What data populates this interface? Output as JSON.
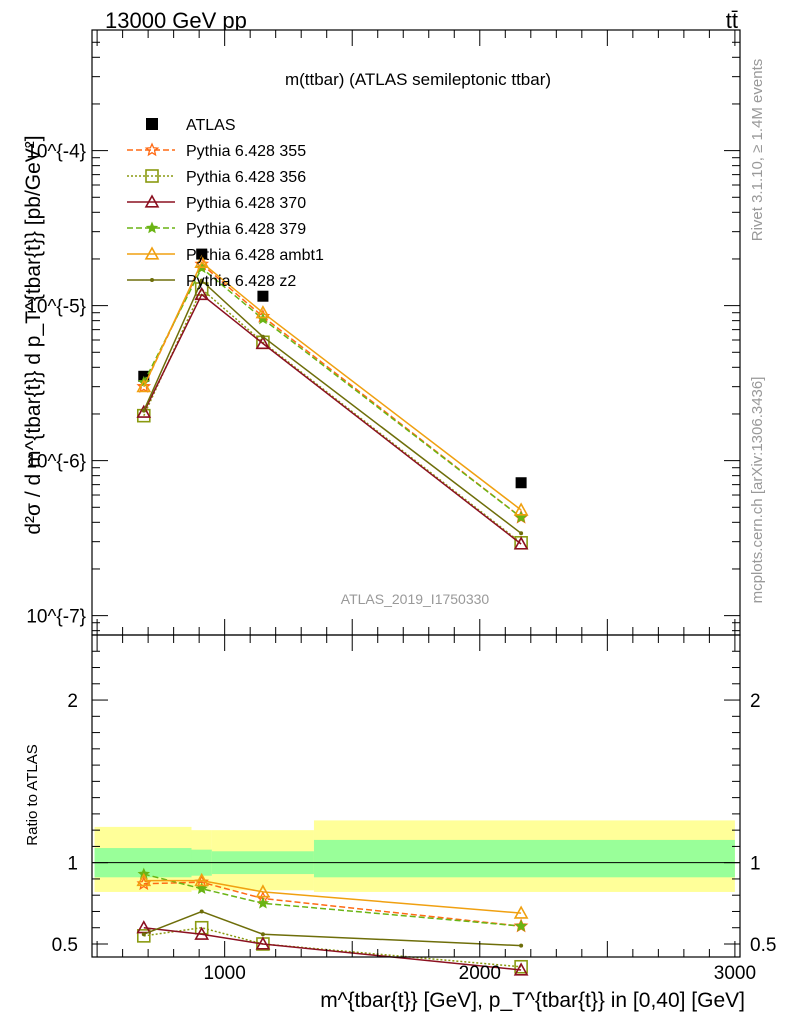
{
  "header": {
    "left": "13000 GeV pp",
    "right": "tt̄"
  },
  "side": {
    "rivet": "Rivet 3.1.10, ≥ 1.4M events",
    "mcplots": "mcplots.cern.ch [arXiv:1306.3436]"
  },
  "colors": {
    "atlas": "#000000",
    "p355": "#ff6a14",
    "p356": "#8a9a10",
    "p370": "#8b1020",
    "p379": "#6ab414",
    "ambt1": "#f0a010",
    "z2": "#6e6e0a",
    "band_outer": "#ffff99",
    "band_inner": "#99ff99"
  },
  "chart_data": [
    {
      "type": "line",
      "title": "m(ttbar) (ATLAS semileptonic ttbar)",
      "ylabel_main": "d²σ / d m^{tbar{t}} d p_T^{tbar{t}} [pb/GeV²]",
      "watermark": "ATLAS_2019_I1750330",
      "yscale": "log",
      "ylim": [
        7.5e-08,
        0.0006
      ],
      "ytick_labels": [
        "10^{-7}",
        "10^{-6}",
        "10^{-5}",
        "10^{-4}"
      ],
      "xlim": [
        480,
        3020
      ],
      "legend_position": "top-left",
      "x": [
        683,
        910,
        1150,
        2162
      ],
      "series": [
        {
          "name": "ATLAS",
          "key": "atlas",
          "marker": "square",
          "values": [
            3.5e-06,
            2.15e-05,
            1.15e-05,
            7.2e-07
          ]
        },
        {
          "name": "Pythia 6.428 355",
          "key": "p355",
          "marker": "star",
          "dash": "dashed",
          "values": [
            3e-06,
            1.85e-05,
            8.5e-06,
            4.3e-07
          ]
        },
        {
          "name": "Pythia 6.428 356",
          "key": "p356",
          "marker": "open-square",
          "dash": "dotted",
          "values": [
            1.95e-06,
            1.28e-05,
            5.8e-06,
            2.95e-07
          ]
        },
        {
          "name": "Pythia 6.428 370",
          "key": "p370",
          "marker": "open-triangle",
          "dash": "solid",
          "values": [
            2.05e-06,
            1.18e-05,
            5.7e-06,
            2.9e-07
          ]
        },
        {
          "name": "Pythia 6.428 379",
          "key": "p379",
          "marker": "small-star",
          "dash": "dashed",
          "values": [
            3.2e-06,
            1.75e-05,
            8.2e-06,
            4.3e-07
          ]
        },
        {
          "name": "Pythia 6.428 ambt1",
          "key": "ambt1",
          "marker": "open-triangle",
          "dash": "solid",
          "values": [
            3e-06,
            1.9e-05,
            9e-06,
            4.8e-07
          ]
        },
        {
          "name": "Pythia 6.428 z2",
          "key": "z2",
          "marker": "dot",
          "dash": "solid",
          "values": [
            2.1e-06,
            1.45e-05,
            6.3e-06,
            3.4e-07
          ]
        }
      ]
    },
    {
      "type": "line",
      "ylabel": "Ratio to ATLAS",
      "xlabel": "m^{tbar{t}} [GeV], p_T^{tbar{t}} in [0,40] [GeV]",
      "ylim": [
        0.42,
        2.4
      ],
      "yticks": [
        0.5,
        1,
        2
      ],
      "ytick_labels": [
        "0.5",
        "1",
        "2"
      ],
      "xticks": [
        1000,
        2000,
        3000
      ],
      "xtick_labels": [
        "1000",
        "2000",
        "3000"
      ],
      "x": [
        683,
        910,
        1150,
        2162
      ],
      "bands": [
        {
          "xmin": 490,
          "xmax": 870,
          "outer": [
            0.82,
            1.22
          ],
          "inner": [
            0.91,
            1.09
          ]
        },
        {
          "xmin": 870,
          "xmax": 950,
          "outer": [
            0.83,
            1.2
          ],
          "inner": [
            0.92,
            1.08
          ]
        },
        {
          "xmin": 950,
          "xmax": 1350,
          "outer": [
            0.83,
            1.2
          ],
          "inner": [
            0.93,
            1.07
          ]
        },
        {
          "xmin": 1350,
          "xmax": 3000,
          "outer": [
            0.82,
            1.26
          ],
          "inner": [
            0.91,
            1.14
          ]
        }
      ],
      "series": [
        {
          "name": "Pythia 6.428 355",
          "key": "p355",
          "values": [
            0.87,
            0.88,
            0.78,
            0.61
          ]
        },
        {
          "name": "Pythia 6.428 356",
          "key": "p356",
          "values": [
            0.55,
            0.6,
            0.5,
            0.36
          ]
        },
        {
          "name": "Pythia 6.428 370",
          "key": "p370",
          "values": [
            0.6,
            0.56,
            0.5,
            0.34
          ]
        },
        {
          "name": "Pythia 6.428 379",
          "key": "p379",
          "values": [
            0.93,
            0.84,
            0.75,
            0.61
          ]
        },
        {
          "name": "Pythia 6.428 ambt1",
          "key": "ambt1",
          "values": [
            0.89,
            0.89,
            0.82,
            0.69
          ]
        },
        {
          "name": "Pythia 6.428 z2",
          "key": "z2",
          "values": [
            0.56,
            0.7,
            0.56,
            0.49
          ]
        }
      ]
    }
  ]
}
